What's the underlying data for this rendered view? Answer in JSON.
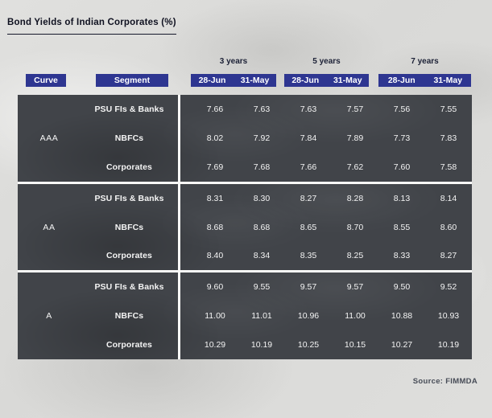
{
  "title": "Bond Yields of Indian Corporates (%)",
  "source": "Source: FIMMDA",
  "table": {
    "curve_header": "Curve",
    "segment_header": "Segment",
    "year_groups": [
      "3 years",
      "5 years",
      "7 years"
    ],
    "date_headers": [
      "28-Jun",
      "31-May"
    ],
    "sections": [
      {
        "curve": "AAA",
        "rows": [
          {
            "segment": "PSU FIs & Banks",
            "values": [
              "7.66",
              "7.63",
              "7.63",
              "7.57",
              "7.56",
              "7.55"
            ]
          },
          {
            "segment": "NBFCs",
            "values": [
              "8.02",
              "7.92",
              "7.84",
              "7.89",
              "7.73",
              "7.83"
            ]
          },
          {
            "segment": "Corporates",
            "values": [
              "7.69",
              "7.68",
              "7.66",
              "7.62",
              "7.60",
              "7.58"
            ]
          }
        ]
      },
      {
        "curve": "AA",
        "rows": [
          {
            "segment": "PSU FIs & Banks",
            "values": [
              "8.31",
              "8.30",
              "8.27",
              "8.28",
              "8.13",
              "8.14"
            ]
          },
          {
            "segment": "NBFCs",
            "values": [
              "8.68",
              "8.68",
              "8.65",
              "8.70",
              "8.55",
              "8.60"
            ]
          },
          {
            "segment": "Corporates",
            "values": [
              "8.40",
              "8.34",
              "8.35",
              "8.25",
              "8.33",
              "8.27"
            ]
          }
        ]
      },
      {
        "curve": "A",
        "rows": [
          {
            "segment": "PSU FIs & Banks",
            "values": [
              "9.60",
              "9.55",
              "9.57",
              "9.57",
              "9.50",
              "9.52"
            ]
          },
          {
            "segment": "NBFCs",
            "values": [
              "11.00",
              "11.01",
              "10.96",
              "11.00",
              "10.88",
              "10.93"
            ]
          },
          {
            "segment": "Corporates",
            "values": [
              "10.29",
              "10.19",
              "10.25",
              "10.15",
              "10.27",
              "10.19"
            ]
          }
        ]
      }
    ]
  },
  "colors": {
    "header_blue": "#2e3691",
    "table_dark": "#414449",
    "page_background": "#dcdcda",
    "divider_white": "#fafaf8"
  },
  "chart_data": {
    "type": "table",
    "title": "Bond Yields of Indian Corporates (%)",
    "column_groups": [
      "3 years",
      "5 years",
      "7 years"
    ],
    "columns": [
      "Curve",
      "Segment",
      "3y 28-Jun",
      "3y 31-May",
      "5y 28-Jun",
      "5y 31-May",
      "7y 28-Jun",
      "7y 31-May"
    ],
    "rows": [
      [
        "AAA",
        "PSU FIs & Banks",
        7.66,
        7.63,
        7.63,
        7.57,
        7.56,
        7.55
      ],
      [
        "AAA",
        "NBFCs",
        8.02,
        7.92,
        7.84,
        7.89,
        7.73,
        7.83
      ],
      [
        "AAA",
        "Corporates",
        7.69,
        7.68,
        7.66,
        7.62,
        7.6,
        7.58
      ],
      [
        "AA",
        "PSU FIs & Banks",
        8.31,
        8.3,
        8.27,
        8.28,
        8.13,
        8.14
      ],
      [
        "AA",
        "NBFCs",
        8.68,
        8.68,
        8.65,
        8.7,
        8.55,
        8.6
      ],
      [
        "AA",
        "Corporates",
        8.4,
        8.34,
        8.35,
        8.25,
        8.33,
        8.27
      ],
      [
        "A",
        "PSU FIs & Banks",
        9.6,
        9.55,
        9.57,
        9.57,
        9.5,
        9.52
      ],
      [
        "A",
        "NBFCs",
        11.0,
        11.01,
        10.96,
        11.0,
        10.88,
        10.93
      ],
      [
        "A",
        "Corporates",
        10.29,
        10.19,
        10.25,
        10.15,
        10.27,
        10.19
      ]
    ],
    "source": "Source: FIMMDA"
  }
}
